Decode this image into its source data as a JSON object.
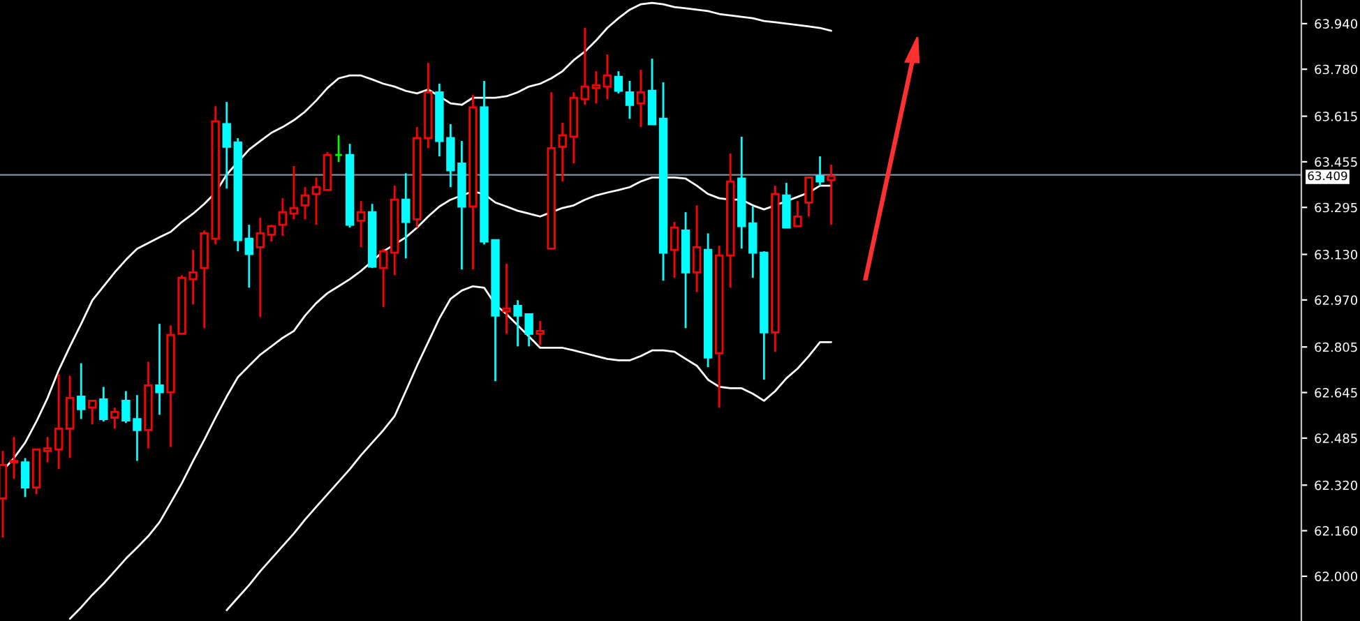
{
  "chart_data": {
    "type": "candlestick",
    "categories": [
      null,
      null,
      null,
      null,
      null,
      null,
      null,
      null,
      null,
      null,
      null,
      null,
      null,
      null,
      null,
      null,
      null,
      null,
      null,
      null,
      null,
      null,
      null,
      null,
      null,
      null,
      null,
      null,
      null,
      null,
      null,
      null,
      null,
      null,
      null,
      null,
      null,
      null,
      null,
      null,
      null,
      null,
      null,
      null,
      null,
      null,
      null,
      null,
      null,
      null,
      null,
      null,
      null,
      null,
      null,
      null,
      null,
      null,
      null,
      null,
      null,
      null,
      null,
      null,
      null,
      null,
      null,
      null,
      null,
      null,
      null,
      null,
      null,
      null,
      null
    ],
    "ohlc": [
      [
        62.273,
        62.44,
        62.136,
        62.391
      ],
      [
        62.4,
        62.489,
        62.342,
        62.405
      ],
      [
        62.4,
        62.415,
        62.278,
        62.312
      ],
      [
        62.312,
        62.445,
        62.288,
        62.445
      ],
      [
        62.44,
        62.489,
        62.4,
        62.449
      ],
      [
        62.445,
        62.709,
        62.376,
        62.518
      ],
      [
        62.518,
        62.704,
        62.415,
        62.626
      ],
      [
        62.631,
        62.748,
        62.552,
        62.587
      ],
      [
        62.592,
        62.616,
        62.533,
        62.616
      ],
      [
        62.621,
        62.665,
        62.543,
        62.552
      ],
      [
        62.557,
        62.592,
        62.518,
        62.577
      ],
      [
        62.616,
        62.65,
        62.538,
        62.547
      ],
      [
        62.552,
        62.636,
        62.405,
        62.513
      ],
      [
        62.513,
        62.753,
        62.449,
        62.67
      ],
      [
        62.67,
        62.886,
        62.567,
        62.646
      ],
      [
        62.646,
        62.881,
        62.454,
        62.847
      ],
      [
        62.851,
        63.057,
        62.851,
        63.048
      ],
      [
        63.043,
        63.146,
        62.954,
        63.067
      ],
      [
        63.082,
        63.214,
        62.871,
        63.204
      ],
      [
        63.185,
        63.65,
        63.165,
        63.597
      ],
      [
        63.587,
        63.665,
        63.361,
        63.508
      ],
      [
        63.523,
        63.538,
        63.141,
        63.18
      ],
      [
        63.185,
        63.234,
        63.013,
        63.131
      ],
      [
        63.155,
        63.258,
        62.91,
        63.204
      ],
      [
        63.199,
        63.234,
        63.175,
        63.229
      ],
      [
        63.234,
        63.327,
        63.195,
        63.278
      ],
      [
        63.273,
        63.44,
        63.253,
        63.293
      ],
      [
        63.302,
        63.366,
        63.253,
        63.337
      ],
      [
        63.342,
        63.4,
        63.234,
        63.366
      ],
      [
        63.356,
        63.489,
        63.356,
        63.479
      ],
      [
        63.479,
        63.548,
        63.454,
        63.479
      ],
      [
        63.479,
        63.518,
        63.224,
        63.234
      ],
      [
        63.248,
        63.317,
        63.155,
        63.278
      ],
      [
        63.278,
        63.307,
        63.082,
        63.087
      ],
      [
        63.082,
        63.15,
        62.945,
        63.141
      ],
      [
        63.136,
        63.371,
        63.057,
        63.322
      ],
      [
        63.322,
        63.415,
        63.116,
        63.244
      ],
      [
        63.253,
        63.577,
        63.224,
        63.538
      ],
      [
        63.538,
        63.802,
        63.503,
        63.699
      ],
      [
        63.699,
        63.729,
        63.474,
        63.528
      ],
      [
        63.538,
        63.587,
        63.366,
        63.425
      ],
      [
        63.449,
        63.528,
        63.077,
        63.298
      ],
      [
        63.298,
        63.69,
        63.077,
        63.646
      ],
      [
        63.646,
        63.739,
        63.165,
        63.175
      ],
      [
        63.18,
        63.18,
        62.685,
        62.915
      ],
      [
        62.93,
        63.097,
        62.851,
        62.94
      ],
      [
        62.949,
        62.969,
        62.807,
        62.915
      ],
      [
        62.92,
        62.92,
        62.807,
        62.851
      ],
      [
        62.851,
        62.896,
        62.812,
        62.861
      ],
      [
        63.15,
        63.699,
        63.15,
        63.503
      ],
      [
        63.508,
        63.592,
        63.386,
        63.548
      ],
      [
        63.543,
        63.699,
        63.449,
        63.68
      ],
      [
        63.675,
        63.925,
        63.655,
        63.719
      ],
      [
        63.714,
        63.773,
        63.66,
        63.724
      ],
      [
        63.719,
        63.832,
        63.675,
        63.758
      ],
      [
        63.753,
        63.773,
        63.695,
        63.704
      ],
      [
        63.699,
        63.739,
        63.606,
        63.655
      ],
      [
        63.66,
        63.778,
        63.577,
        63.699
      ],
      [
        63.704,
        63.817,
        63.587,
        63.587
      ],
      [
        63.606,
        63.734,
        63.038,
        63.136
      ],
      [
        63.146,
        63.244,
        63.048,
        63.224
      ],
      [
        63.214,
        63.278,
        62.871,
        63.067
      ],
      [
        63.067,
        63.302,
        62.998,
        63.155
      ],
      [
        63.146,
        63.204,
        62.734,
        62.768
      ],
      [
        62.783,
        63.16,
        62.592,
        63.126
      ],
      [
        63.126,
        63.484,
        63.013,
        63.386
      ],
      [
        63.396,
        63.543,
        63.15,
        63.229
      ],
      [
        63.239,
        63.298,
        63.048,
        63.136
      ],
      [
        63.136,
        63.141,
        62.69,
        62.856
      ],
      [
        62.856,
        63.371,
        62.788,
        63.342
      ],
      [
        63.337,
        63.381,
        63.224,
        63.224
      ],
      [
        63.229,
        63.317,
        63.229,
        63.263
      ],
      [
        63.312,
        63.4,
        63.263,
        63.4
      ],
      [
        63.405,
        63.474,
        63.371,
        63.386
      ],
      [
        63.391,
        63.445,
        63.234,
        63.405
      ]
    ],
    "colors": [
      "#ff0000",
      "#ff0000",
      "#00ffff",
      "#ff0000",
      "#ff0000",
      "#ff0000",
      "#ff0000",
      "#00ffff",
      "#ff0000",
      "#00ffff",
      "#ff0000",
      "#00ffff",
      "#00ffff",
      "#ff0000",
      "#00ffff",
      "#ff0000",
      "#ff0000",
      "#ff0000",
      "#ff0000",
      "#ff0000",
      "#00ffff",
      "#00ffff",
      "#00ffff",
      "#ff0000",
      "#ff0000",
      "#ff0000",
      "#ff0000",
      "#ff0000",
      "#ff0000",
      "#ff0000",
      "#00ff00",
      "#00ffff",
      "#ff0000",
      "#00ffff",
      "#ff0000",
      "#ff0000",
      "#00ffff",
      "#ff0000",
      "#ff0000",
      "#00ffff",
      "#00ffff",
      "#00ffff",
      "#ff0000",
      "#00ffff",
      "#00ffff",
      "#ff0000",
      "#00ffff",
      "#00ffff",
      "#ff0000",
      "#ff0000",
      "#ff0000",
      "#ff0000",
      "#ff0000",
      "#ff0000",
      "#ff0000",
      "#00ffff",
      "#00ffff",
      "#ff0000",
      "#00ffff",
      "#00ffff",
      "#ff0000",
      "#00ffff",
      "#ff0000",
      "#00ffff",
      "#ff0000",
      "#ff0000",
      "#00ffff",
      "#00ffff",
      "#00ffff",
      "#ff0000",
      "#00ffff",
      "#ff0000",
      "#ff0000",
      "#00ffff",
      "#ff0000"
    ],
    "series": [
      {
        "type": "line",
        "color": "#ffffff",
        "values": [
          62.371,
          62.415,
          62.469,
          62.543,
          62.626,
          62.724,
          62.807,
          62.886,
          62.969,
          63.018,
          63.067,
          63.111,
          63.15,
          63.17,
          63.19,
          63.209,
          63.244,
          63.273,
          63.307,
          63.347,
          63.41,
          63.454,
          63.498,
          63.528,
          63.557,
          63.577,
          63.601,
          63.631,
          63.67,
          63.714,
          63.748,
          63.758,
          63.758,
          63.744,
          63.729,
          63.719,
          63.704,
          63.695,
          63.709,
          63.685,
          63.66,
          63.655,
          63.68,
          63.68,
          63.68,
          63.685,
          63.699,
          63.719,
          63.729,
          63.748,
          63.773,
          63.812,
          63.842,
          63.881,
          63.925,
          63.959,
          63.989,
          64.008,
          64.013,
          64.008,
          63.998,
          63.994,
          63.989,
          63.984,
          63.974,
          63.969,
          63.964,
          63.959,
          63.949,
          63.945,
          63.94,
          63.935,
          63.93,
          63.925,
          63.915
        ]
      },
      {
        "type": "line",
        "color": "#ffffff",
        "values": [
          null,
          null,
          null,
          null,
          null,
          null,
          61.851,
          61.891,
          61.935,
          61.974,
          62.018,
          62.062,
          62.101,
          62.141,
          62.19,
          62.258,
          62.327,
          62.405,
          62.479,
          62.557,
          62.631,
          62.699,
          62.739,
          62.778,
          62.807,
          62.837,
          62.861,
          62.915,
          62.959,
          62.994,
          63.018,
          63.043,
          63.072,
          63.106,
          63.141,
          63.165,
          63.19,
          63.224,
          63.263,
          63.298,
          63.322,
          63.337,
          63.351,
          63.342,
          63.312,
          63.298,
          63.283,
          63.273,
          63.263,
          63.278,
          63.293,
          63.302,
          63.322,
          63.337,
          63.347,
          63.356,
          63.366,
          63.386,
          63.4,
          63.4,
          63.4,
          63.396,
          63.371,
          63.342,
          63.327,
          63.322,
          63.322,
          63.302,
          63.288,
          63.302,
          63.317,
          63.332,
          63.347,
          63.371,
          63.371
        ]
      },
      {
        "type": "line",
        "color": "#ffffff",
        "values": [
          null,
          null,
          null,
          null,
          null,
          null,
          null,
          null,
          null,
          null,
          null,
          null,
          null,
          null,
          null,
          null,
          null,
          null,
          null,
          null,
          61.881,
          61.925,
          61.969,
          62.018,
          62.062,
          62.106,
          62.15,
          62.199,
          62.244,
          62.288,
          62.332,
          62.376,
          62.425,
          62.469,
          62.513,
          62.562,
          62.65,
          62.739,
          62.822,
          62.905,
          62.974,
          63.003,
          63.018,
          63.013,
          62.954,
          62.92,
          62.881,
          62.842,
          62.802,
          62.802,
          62.802,
          62.793,
          62.783,
          62.773,
          62.763,
          62.758,
          62.758,
          62.773,
          62.793,
          62.793,
          62.788,
          62.763,
          62.739,
          62.69,
          62.665,
          62.66,
          62.66,
          62.641,
          62.616,
          62.65,
          62.695,
          62.729,
          62.773,
          62.822,
          62.822
        ]
      }
    ],
    "ylim": [
      61.843,
      64.023
    ],
    "yticks": [
      {
        "value": 63.94,
        "label": "63.940"
      },
      {
        "value": 63.78,
        "label": "63.780"
      },
      63.615,
      63.455,
      63.295,
      {
        "value": 63.13,
        "label": "63.130"
      },
      {
        "value": 62.97,
        "label": "62.970"
      },
      62.805,
      62.645,
      62.485,
      {
        "value": 62.32,
        "label": "62.320"
      },
      {
        "value": 62.16,
        "label": "62.160"
      },
      {
        "value": 62.0,
        "label": "62.000"
      }
    ],
    "ref_lines": [
      {
        "axis": "y",
        "value": 63.409,
        "label": "63.409",
        "color": "#8090a0"
      }
    ],
    "tick_labels": "y",
    "grid": false,
    "legend": false
  }
}
